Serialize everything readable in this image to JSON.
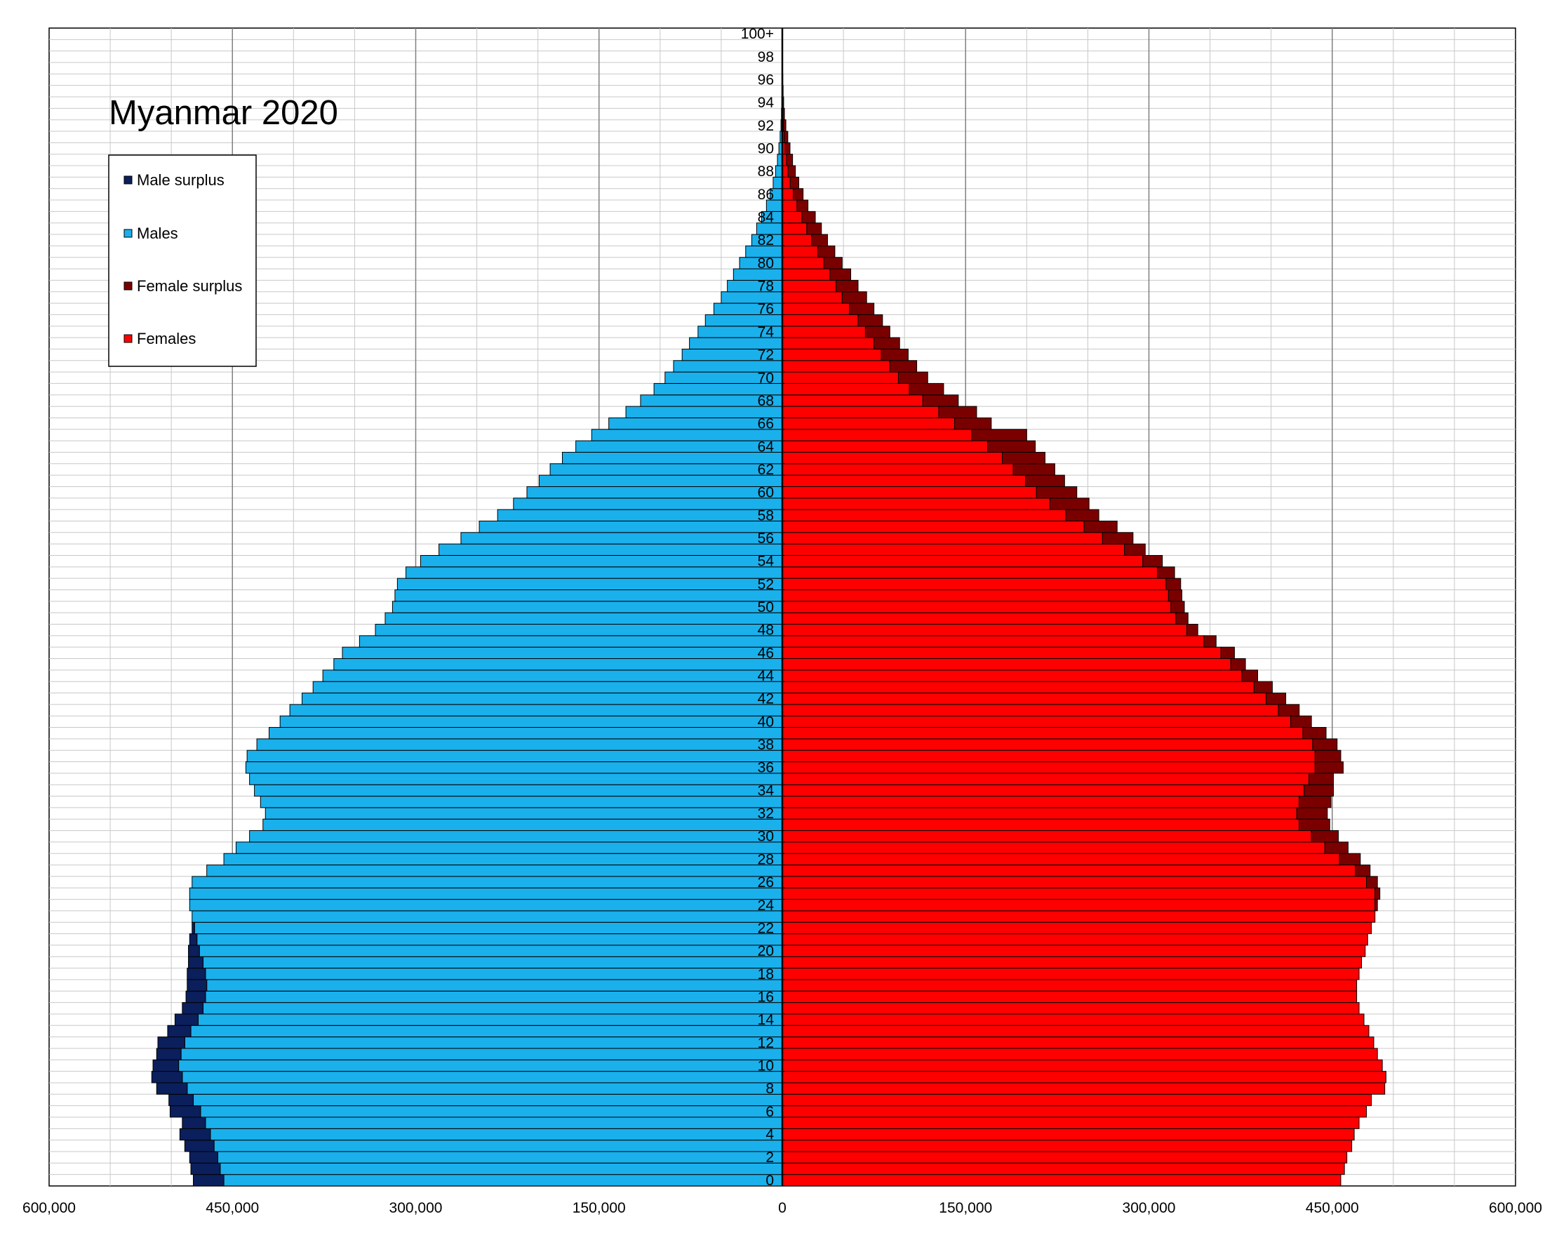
{
  "chart_data": {
    "type": "bar",
    "orientation": "horizontal-population-pyramid",
    "title": "Myanmar 2020",
    "xlim": [
      -600000,
      600000
    ],
    "x_ticks": [
      -600000,
      -450000,
      -300000,
      -150000,
      0,
      150000,
      300000,
      450000,
      600000
    ],
    "x_tick_labels": [
      "600,000",
      "450,000",
      "300,000",
      "150,000",
      "0",
      "150,000",
      "300,000",
      "450,000",
      "600,000"
    ],
    "ages": [
      0,
      1,
      2,
      3,
      4,
      5,
      6,
      7,
      8,
      9,
      10,
      11,
      12,
      13,
      14,
      15,
      16,
      17,
      18,
      19,
      20,
      21,
      22,
      23,
      24,
      25,
      26,
      27,
      28,
      29,
      30,
      31,
      32,
      33,
      34,
      35,
      36,
      37,
      38,
      39,
      40,
      41,
      42,
      43,
      44,
      45,
      46,
      47,
      48,
      49,
      50,
      51,
      52,
      53,
      54,
      55,
      56,
      57,
      58,
      59,
      60,
      61,
      62,
      63,
      64,
      65,
      66,
      67,
      68,
      69,
      70,
      71,
      72,
      73,
      74,
      75,
      76,
      77,
      78,
      79,
      80,
      81,
      82,
      83,
      84,
      85,
      86,
      87,
      88,
      89,
      90,
      91,
      92,
      93,
      94,
      95,
      96,
      97,
      98,
      99,
      100
    ],
    "age_labels": [
      "0",
      "",
      "2",
      "",
      "4",
      "",
      "6",
      "",
      "8",
      "",
      "10",
      "",
      "12",
      "",
      "14",
      "",
      "16",
      "",
      "18",
      "",
      "20",
      "",
      "22",
      "",
      "24",
      "",
      "26",
      "",
      "28",
      "",
      "30",
      "",
      "32",
      "",
      "34",
      "",
      "36",
      "",
      "38",
      "",
      "40",
      "",
      "42",
      "",
      "44",
      "",
      "46",
      "",
      "48",
      "",
      "50",
      "",
      "52",
      "",
      "54",
      "",
      "56",
      "",
      "58",
      "",
      "60",
      "",
      "62",
      "",
      "64",
      "",
      "66",
      "",
      "68",
      "",
      "70",
      "",
      "72",
      "",
      "74",
      "",
      "76",
      "",
      "78",
      "",
      "80",
      "",
      "82",
      "",
      "84",
      "",
      "86",
      "",
      "88",
      "",
      "90",
      "",
      "92",
      "",
      "94",
      "",
      "96",
      "",
      "98",
      "",
      "100+"
    ],
    "series": [
      {
        "name": "Male surplus",
        "color": "#0b1f5c",
        "side": "left"
      },
      {
        "name": "Males",
        "color": "#1ab0ec",
        "side": "left"
      },
      {
        "name": "Female surplus",
        "color": "#7a0000",
        "side": "right"
      },
      {
        "name": "Females",
        "color": "#ff0000",
        "side": "right"
      }
    ],
    "males": [
      457000,
      460000,
      462000,
      465000,
      468000,
      472000,
      476000,
      482000,
      487000,
      491000,
      494000,
      492000,
      489000,
      484000,
      478000,
      474000,
      472000,
      471000,
      472000,
      474000,
      477000,
      479000,
      481000,
      483000,
      485000,
      485000,
      483000,
      471000,
      457000,
      447000,
      436000,
      425000,
      423000,
      427000,
      432000,
      436000,
      439000,
      438000,
      430000,
      420000,
      411000,
      403000,
      393000,
      384000,
      376000,
      367000,
      360000,
      346000,
      333000,
      325000,
      319000,
      317000,
      315000,
      308000,
      296000,
      281000,
      263000,
      248000,
      233000,
      220000,
      209000,
      199000,
      190000,
      180000,
      169000,
      156000,
      142000,
      128000,
      116000,
      105000,
      96000,
      89000,
      82000,
      76000,
      69000,
      63000,
      56000,
      50000,
      45000,
      40000,
      35000,
      30000,
      25000,
      21000,
      17000,
      13000,
      10000,
      7500,
      5500,
      4000,
      2800,
      1800,
      1100,
      700,
      400,
      250,
      150,
      90,
      50,
      30,
      20
    ],
    "females": [
      457000,
      460000,
      462000,
      466000,
      468000,
      472000,
      478000,
      482000,
      493000,
      494000,
      491000,
      487000,
      484000,
      480000,
      476000,
      472000,
      470000,
      470000,
      472000,
      474000,
      477000,
      479000,
      482000,
      485000,
      485000,
      485000,
      478000,
      469000,
      456000,
      444000,
      433000,
      423000,
      421000,
      423000,
      427000,
      431000,
      436000,
      436000,
      434000,
      426000,
      416000,
      406000,
      396000,
      386000,
      376000,
      367000,
      359000,
      345000,
      331000,
      322000,
      318000,
      316000,
      314000,
      307000,
      295000,
      280000,
      262000,
      247000,
      232000,
      219000,
      208000,
      199000,
      189000,
      180000,
      168000,
      155000,
      141000,
      128000,
      115000,
      104000,
      95000,
      88000,
      81000,
      75000,
      68000,
      62000,
      55000,
      49000,
      44000,
      39000,
      34000,
      29000,
      24000,
      20000,
      16000,
      12000,
      9000,
      6500,
      4700,
      3400,
      2300,
      1500,
      900,
      550,
      300,
      180,
      100,
      60,
      30,
      15,
      10
    ],
    "male_surplus": [
      25000,
      24000,
      23000,
      24000,
      25000,
      19000,
      25000,
      20000,
      25000,
      25000,
      21000,
      20000,
      22000,
      19000,
      19000,
      17000,
      16000,
      16000,
      15000,
      12000,
      9000,
      6000,
      2000,
      0,
      0,
      0,
      0,
      0,
      0,
      0,
      0,
      0,
      0,
      0,
      0,
      0,
      0,
      0,
      0,
      0,
      0,
      0,
      0,
      0,
      0,
      0,
      0,
      0,
      0,
      0,
      0,
      0,
      0,
      0,
      0,
      0,
      0,
      0,
      0,
      0,
      0,
      0,
      0,
      0,
      0,
      0,
      0,
      0,
      0,
      0,
      0,
      0,
      0,
      0,
      0,
      0,
      0,
      0,
      0,
      0,
      0,
      0,
      0,
      0,
      0,
      0,
      0,
      0,
      0,
      0,
      0,
      0,
      0,
      0,
      0,
      0,
      0,
      0,
      0,
      0,
      0
    ],
    "female_surplus": [
      0,
      0,
      0,
      0,
      0,
      0,
      0,
      0,
      0,
      0,
      0,
      0,
      0,
      0,
      0,
      0,
      0,
      0,
      0,
      0,
      0,
      0,
      0,
      0,
      2000,
      4000,
      9000,
      12000,
      17000,
      19000,
      22000,
      25000,
      25000,
      26000,
      24000,
      20000,
      23000,
      21000,
      20000,
      19000,
      17000,
      17000,
      16000,
      15000,
      13000,
      12000,
      11000,
      10000,
      9000,
      10000,
      11000,
      11000,
      12000,
      14000,
      16000,
      17000,
      25000,
      27000,
      27000,
      32000,
      33000,
      32000,
      34000,
      35000,
      39000,
      45000,
      30000,
      31000,
      29000,
      28000,
      24000,
      22000,
      22000,
      21000,
      20000,
      20000,
      20000,
      20000,
      18000,
      17000,
      15000,
      14000,
      13000,
      12000,
      11000,
      9000,
      8000,
      7000,
      6000,
      5000,
      4000,
      3000,
      2000,
      1200,
      800,
      500,
      300,
      200,
      100,
      50,
      30
    ]
  }
}
